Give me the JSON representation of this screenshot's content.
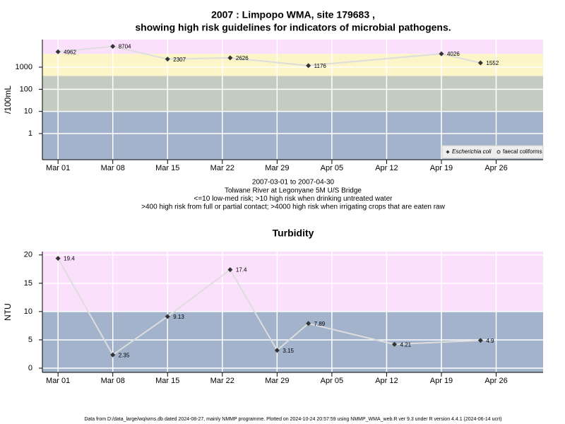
{
  "chart_data": [
    {
      "type": "line",
      "title": [
        "2007 : Limpopo WMA, site 179683 ,",
        "showing high risk guidelines for indicators of microbial pathogens."
      ],
      "ylabel": "/100mL",
      "log_y": true,
      "ylim": [
        0.066,
        17600
      ],
      "yticks": [
        1,
        10,
        100,
        1000
      ],
      "xlim": [
        "2007-02-27",
        "2007-05-02"
      ],
      "xticks": [
        {
          "value": "2007-03-01",
          "label": "Mar 01"
        },
        {
          "value": "2007-03-08",
          "label": "Mar 08"
        },
        {
          "value": "2007-03-15",
          "label": "Mar 15"
        },
        {
          "value": "2007-03-22",
          "label": "Mar 22"
        },
        {
          "value": "2007-03-29",
          "label": "Mar 29"
        },
        {
          "value": "2007-04-05",
          "label": "Apr 05"
        },
        {
          "value": "2007-04-12",
          "label": "Apr 12"
        },
        {
          "value": "2007-04-19",
          "label": "Apr 19"
        },
        {
          "value": "2007-04-26",
          "label": "Apr 26"
        }
      ],
      "grid": true,
      "bands": [
        {
          "from": 0.066,
          "to": 10,
          "color": "#a3b3cb"
        },
        {
          "from": 10,
          "to": 400,
          "color": "#c4cbc0"
        },
        {
          "from": 400,
          "to": 4000,
          "color": "#fbf5c8"
        },
        {
          "from": 4000,
          "to": 17600,
          "color": "#fbe0fb"
        }
      ],
      "x": [
        "2007-03-01",
        "2007-03-08",
        "2007-03-15",
        "2007-03-23",
        "2007-04-02",
        "2007-04-19",
        "2007-04-24"
      ],
      "series": [
        {
          "name": "Escherichia coli",
          "color": "#333333",
          "line_color": "#dddddd",
          "marker": "diamond",
          "values": [
            4962,
            8704,
            2307,
            2626,
            1176,
            4026,
            1552
          ]
        },
        {
          "name": "faecal coliforms",
          "color": "#333333",
          "line_color": "#dddddd",
          "marker": "circle",
          "values": [
            null,
            null,
            null,
            null,
            null,
            null,
            null
          ]
        }
      ],
      "legend": "lower right",
      "notes": [
        "2007-03-01 to 2007-04-30",
        "Tolwane River at Legonyane 5M U/S Bridge",
        "<=10 low-med risk; >10 high risk when drinking untreated water",
        ">400 high risk from full or partial contact; >4000 high risk when irrigating crops that are eaten raw"
      ]
    },
    {
      "type": "line",
      "title": [
        "Turbidity"
      ],
      "ylabel": "NTU",
      "log_y": false,
      "ylim": [
        -0.75,
        20.6
      ],
      "yticks": [
        0,
        5,
        10,
        15,
        20
      ],
      "xlim": [
        "2007-02-27",
        "2007-05-02"
      ],
      "xticks": [
        {
          "value": "2007-03-01",
          "label": "Mar 01"
        },
        {
          "value": "2007-03-08",
          "label": "Mar 08"
        },
        {
          "value": "2007-03-15",
          "label": "Mar 15"
        },
        {
          "value": "2007-03-22",
          "label": "Mar 22"
        },
        {
          "value": "2007-03-29",
          "label": "Mar 29"
        },
        {
          "value": "2007-04-05",
          "label": "Apr 05"
        },
        {
          "value": "2007-04-12",
          "label": "Apr 12"
        },
        {
          "value": "2007-04-19",
          "label": "Apr 19"
        },
        {
          "value": "2007-04-26",
          "label": "Apr 26"
        }
      ],
      "grid": true,
      "bands": [
        {
          "from": -0.75,
          "to": 10,
          "color": "#a3b3cb"
        },
        {
          "from": 10,
          "to": 20.6,
          "color": "#fbe0fb"
        }
      ],
      "x": [
        "2007-03-01",
        "2007-03-08",
        "2007-03-15",
        "2007-03-23",
        "2007-03-29",
        "2007-04-02",
        "2007-04-13",
        "2007-04-24"
      ],
      "series": [
        {
          "color": "#333333",
          "line_color": "#dddddd",
          "marker": "diamond",
          "values": [
            19.4,
            2.35,
            9.13,
            17.4,
            3.15,
            7.89,
            4.21,
            4.9
          ]
        }
      ],
      "footer": "Data from D:/data_large/wq/wms.db dated 2024-08-27, mainly NMMP programme. Plotted on 2024-10-24 20:57:59 using NMMP_WMA_web.R ver 9.3 under R version 4.4.1 (2024-06-14 ucrt)"
    }
  ]
}
